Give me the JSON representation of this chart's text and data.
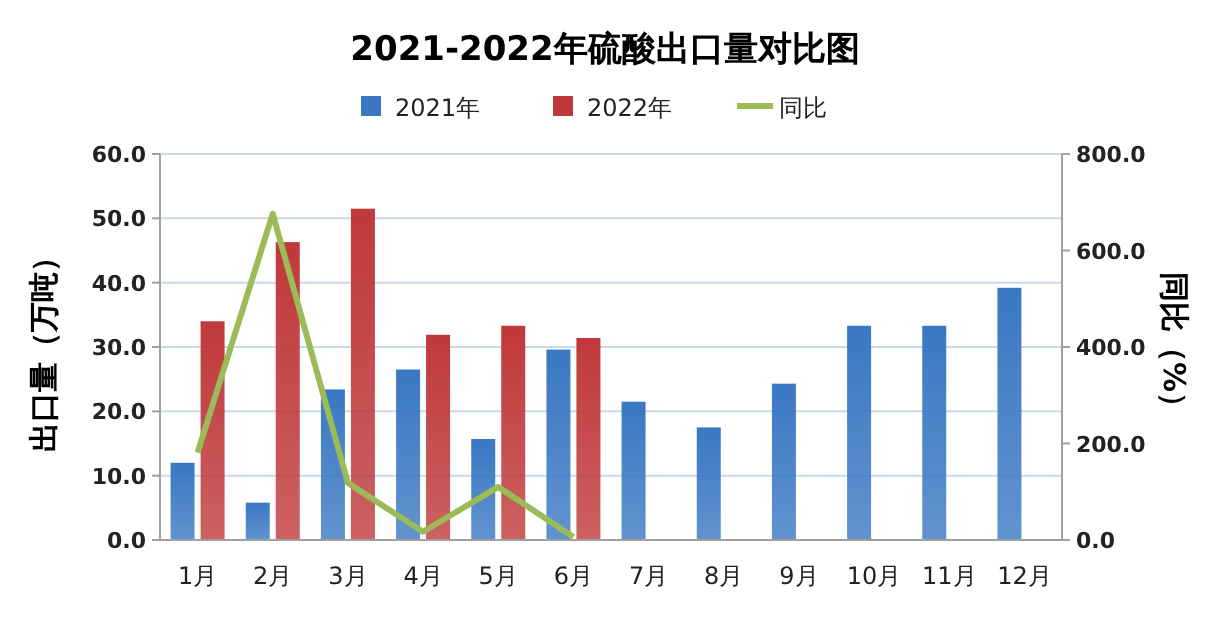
{
  "chart_data": {
    "type": "bar",
    "title": "2021-2022年硫酸出口量对比图",
    "categories": [
      "1月",
      "2月",
      "3月",
      "4月",
      "5月",
      "6月",
      "7月",
      "8月",
      "9月",
      "10月",
      "11月",
      "12月"
    ],
    "series": [
      {
        "name": "2021年",
        "color": "#3a78c3",
        "values": [
          12.0,
          5.8,
          23.4,
          26.5,
          15.7,
          29.6,
          21.5,
          17.5,
          24.3,
          33.3,
          33.3,
          39.2
        ]
      },
      {
        "name": "2022年",
        "color": "#c0393a",
        "values": [
          34.0,
          46.3,
          51.5,
          31.9,
          33.3,
          31.4,
          null,
          null,
          null,
          null,
          null,
          null
        ]
      },
      {
        "name": "同比",
        "type": "line",
        "axis": "y2",
        "color": "#9bbb59",
        "values": [
          181,
          676,
          118,
          17,
          110,
          6,
          null,
          null,
          null,
          null,
          null,
          null
        ]
      }
    ],
    "ylabel": "出口量（万吨）",
    "y2label": "同比（%）",
    "ylim": [
      0,
      60
    ],
    "yticks": [
      {
        "value": 0,
        "label": "0.0"
      },
      {
        "value": 10,
        "label": "10.0"
      },
      {
        "value": 20,
        "label": "20.0"
      },
      {
        "value": 30,
        "label": "30.0"
      },
      {
        "value": 40,
        "label": "40.0"
      },
      {
        "value": 50,
        "label": "50.0"
      },
      {
        "value": 60,
        "label": "60.0"
      }
    ],
    "y2lim": [
      0,
      800
    ],
    "y2ticks": [
      {
        "value": 0,
        "label": "0.0"
      },
      {
        "value": 200,
        "label": "200.0"
      },
      {
        "value": 400,
        "label": "400.0"
      },
      {
        "value": 600,
        "label": "600.0"
      },
      {
        "value": 800,
        "label": "800.0"
      }
    ],
    "grid": "y",
    "legend": "top"
  }
}
